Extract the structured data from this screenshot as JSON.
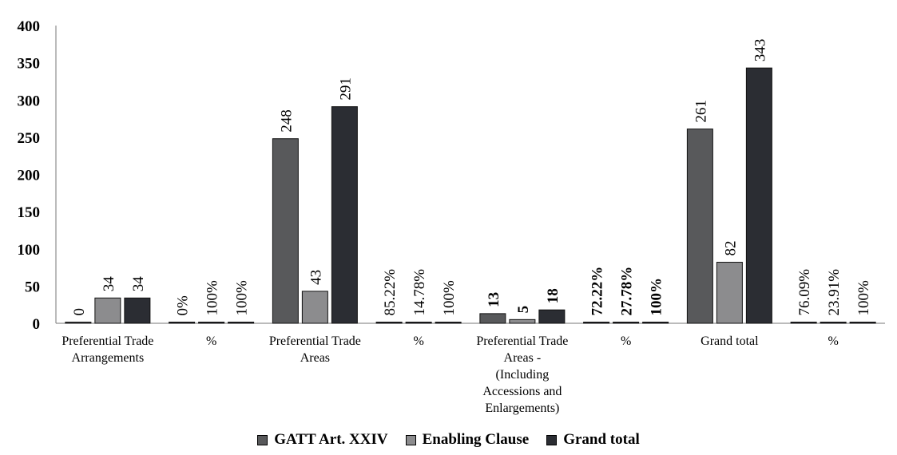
{
  "chart_data": {
    "type": "bar",
    "categories": [
      "Preferential Trade Arrangements",
      "%",
      "Preferential Trade Areas",
      "%",
      "Preferential Trade Areas - (Including Accessions and Enlargements)",
      "%",
      "Grand total",
      "%"
    ],
    "category_lines": [
      [
        "Preferential Trade",
        "Arrangements"
      ],
      [
        "%"
      ],
      [
        "Preferential Trade",
        "Areas"
      ],
      [
        "%"
      ],
      [
        "Preferential Trade",
        "Areas -",
        "(Including",
        "Accessions and",
        "Enlargements)"
      ],
      [
        "%"
      ],
      [
        "Grand total"
      ],
      [
        "%"
      ]
    ],
    "series": [
      {
        "name": "GATT Art. XXIV",
        "color": "#58595b",
        "values": [
          0,
          0,
          248,
          0.8522,
          13,
          0.7222,
          261,
          0.7609
        ],
        "labels": [
          "0",
          "0%",
          "248",
          "85.22%",
          "13",
          "72.22%",
          "261",
          "76.09%"
        ]
      },
      {
        "name": "Enabling Clause",
        "color": "#8c8c8e",
        "values": [
          34,
          1,
          43,
          0.1478,
          5,
          0.2778,
          82,
          0.2391
        ],
        "labels": [
          "34",
          "100%",
          "43",
          "14.78%",
          "5",
          "27.78%",
          "82",
          "23.91%"
        ]
      },
      {
        "name": "Grand total",
        "color": "#2b2d33",
        "values": [
          34,
          1,
          291,
          1,
          18,
          1,
          343,
          1
        ],
        "labels": [
          "34",
          "100%",
          "291",
          "100%",
          "18",
          "100%",
          "343",
          "100%"
        ]
      }
    ],
    "bold_label_groups": [
      4,
      5
    ],
    "ylim": [
      0,
      400
    ],
    "yticks": [
      "0",
      "50",
      "100",
      "150",
      "200",
      "250",
      "300",
      "350",
      "400"
    ],
    "legend": "bottom",
    "title": "",
    "xlabel": "",
    "ylabel": ""
  }
}
